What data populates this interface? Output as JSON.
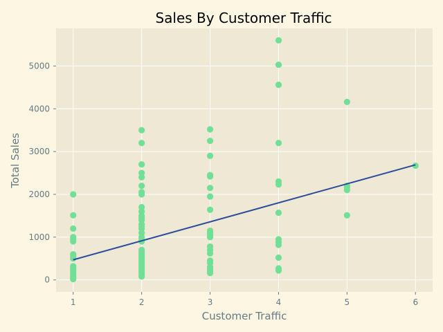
{
  "chart_data": {
    "type": "scatter",
    "title": "Sales By Customer Traffic",
    "xlabel": "Customer Traffic",
    "ylabel": "Total Sales",
    "xlim": [
      0.75,
      6.25
    ],
    "ylim": [
      -280,
      5880
    ],
    "xticks": [
      1,
      2,
      3,
      4,
      5,
      6
    ],
    "yticks": [
      0,
      1000,
      2000,
      3000,
      4000,
      5000
    ],
    "grid": true,
    "colors": {
      "figure_bg": "#fdf6e3",
      "plot_bg": "#eee8d5",
      "points": "#71e096",
      "trend": "#2a4d9c"
    },
    "points": [
      {
        "x": 1,
        "y": 2000
      },
      {
        "x": 1,
        "y": 1510
      },
      {
        "x": 1,
        "y": 1200
      },
      {
        "x": 1,
        "y": 1000
      },
      {
        "x": 1,
        "y": 950
      },
      {
        "x": 1,
        "y": 900
      },
      {
        "x": 1,
        "y": 600
      },
      {
        "x": 1,
        "y": 560
      },
      {
        "x": 1,
        "y": 500
      },
      {
        "x": 1,
        "y": 320
      },
      {
        "x": 1,
        "y": 300
      },
      {
        "x": 1,
        "y": 250
      },
      {
        "x": 1,
        "y": 200
      },
      {
        "x": 1,
        "y": 150
      },
      {
        "x": 1,
        "y": 100
      },
      {
        "x": 1,
        "y": 50
      },
      {
        "x": 1,
        "y": 20
      },
      {
        "x": 2,
        "y": 3500
      },
      {
        "x": 2,
        "y": 3200
      },
      {
        "x": 2,
        "y": 2700
      },
      {
        "x": 2,
        "y": 2500
      },
      {
        "x": 2,
        "y": 2400
      },
      {
        "x": 2,
        "y": 2200
      },
      {
        "x": 2,
        "y": 2050
      },
      {
        "x": 2,
        "y": 2000
      },
      {
        "x": 2,
        "y": 1700
      },
      {
        "x": 2,
        "y": 1600
      },
      {
        "x": 2,
        "y": 1500
      },
      {
        "x": 2,
        "y": 1450
      },
      {
        "x": 2,
        "y": 1400
      },
      {
        "x": 2,
        "y": 1300
      },
      {
        "x": 2,
        "y": 1250
      },
      {
        "x": 2,
        "y": 1200
      },
      {
        "x": 2,
        "y": 1100
      },
      {
        "x": 2,
        "y": 1000
      },
      {
        "x": 2,
        "y": 950
      },
      {
        "x": 2,
        "y": 900
      },
      {
        "x": 2,
        "y": 700
      },
      {
        "x": 2,
        "y": 650
      },
      {
        "x": 2,
        "y": 600
      },
      {
        "x": 2,
        "y": 550
      },
      {
        "x": 2,
        "y": 500
      },
      {
        "x": 2,
        "y": 450
      },
      {
        "x": 2,
        "y": 400
      },
      {
        "x": 2,
        "y": 350
      },
      {
        "x": 2,
        "y": 300
      },
      {
        "x": 2,
        "y": 250
      },
      {
        "x": 2,
        "y": 200
      },
      {
        "x": 2,
        "y": 150
      },
      {
        "x": 2,
        "y": 100
      },
      {
        "x": 2,
        "y": 80
      },
      {
        "x": 3,
        "y": 3520
      },
      {
        "x": 3,
        "y": 3250
      },
      {
        "x": 3,
        "y": 2900
      },
      {
        "x": 3,
        "y": 2450
      },
      {
        "x": 3,
        "y": 2420
      },
      {
        "x": 3,
        "y": 2150
      },
      {
        "x": 3,
        "y": 1950
      },
      {
        "x": 3,
        "y": 1640
      },
      {
        "x": 3,
        "y": 1150
      },
      {
        "x": 3,
        "y": 1100
      },
      {
        "x": 3,
        "y": 1050
      },
      {
        "x": 3,
        "y": 1000
      },
      {
        "x": 3,
        "y": 780
      },
      {
        "x": 3,
        "y": 700
      },
      {
        "x": 3,
        "y": 620
      },
      {
        "x": 3,
        "y": 450
      },
      {
        "x": 3,
        "y": 400
      },
      {
        "x": 3,
        "y": 300
      },
      {
        "x": 3,
        "y": 250
      },
      {
        "x": 3,
        "y": 200
      },
      {
        "x": 3,
        "y": 160
      },
      {
        "x": 4,
        "y": 5600
      },
      {
        "x": 4,
        "y": 5030
      },
      {
        "x": 4,
        "y": 4560
      },
      {
        "x": 4,
        "y": 3200
      },
      {
        "x": 4,
        "y": 2300
      },
      {
        "x": 4,
        "y": 2230
      },
      {
        "x": 4,
        "y": 1570
      },
      {
        "x": 4,
        "y": 950
      },
      {
        "x": 4,
        "y": 880
      },
      {
        "x": 4,
        "y": 820
      },
      {
        "x": 4,
        "y": 520
      },
      {
        "x": 4,
        "y": 270
      },
      {
        "x": 4,
        "y": 220
      },
      {
        "x": 5,
        "y": 4160
      },
      {
        "x": 5,
        "y": 2200
      },
      {
        "x": 5,
        "y": 2170
      },
      {
        "x": 5,
        "y": 2100
      },
      {
        "x": 5,
        "y": 1510
      },
      {
        "x": 6,
        "y": 2670
      }
    ],
    "trendline": [
      {
        "x": 1,
        "y": 470
      },
      {
        "x": 6,
        "y": 2690
      }
    ]
  }
}
